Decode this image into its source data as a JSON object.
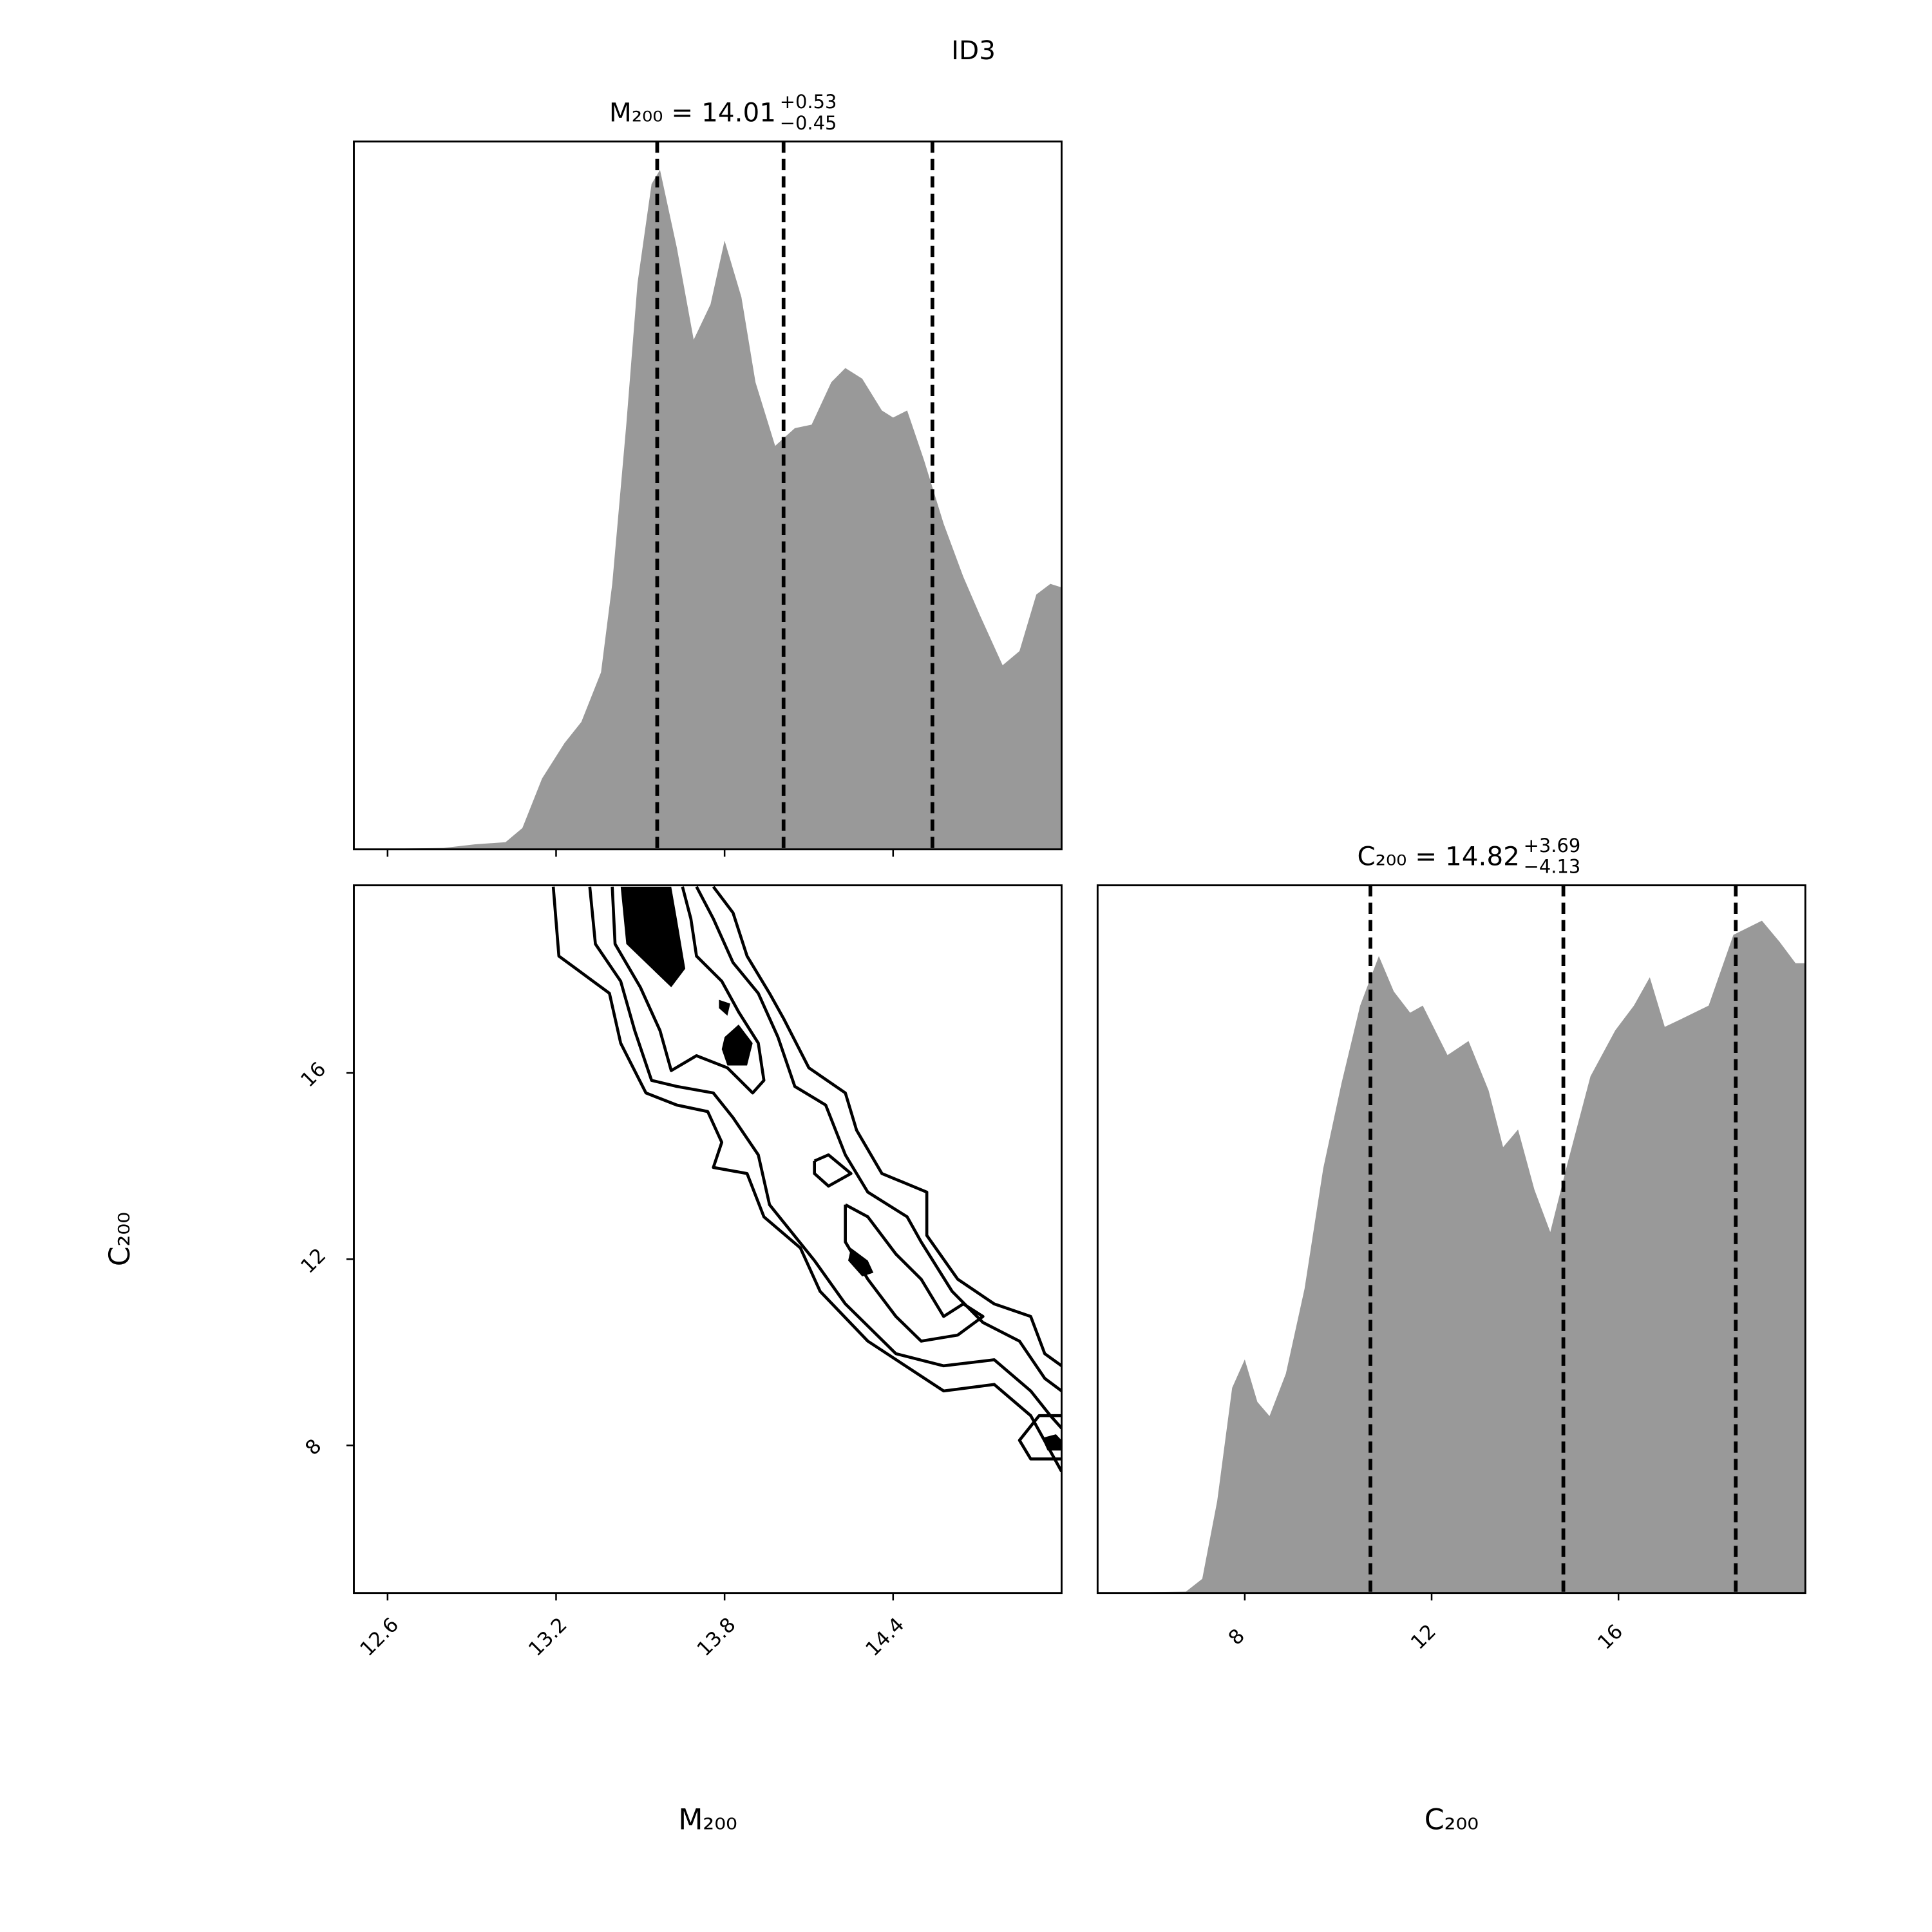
{
  "title": "ID3",
  "chart_data": [
    {
      "type": "density",
      "title": {
        "text": "M₂₀₀ = 14.01",
        "upper": "+0.53",
        "lower": "−0.45"
      },
      "x": [
        12.48,
        12.8,
        12.91,
        13.02,
        13.08,
        13.15,
        13.23,
        13.29,
        13.36,
        13.4,
        13.45,
        13.49,
        13.54,
        13.57,
        13.63,
        13.69,
        13.75,
        13.8,
        13.86,
        13.91,
        13.98,
        14.05,
        14.11,
        14.18,
        14.23,
        14.29,
        14.36,
        14.4,
        14.45,
        14.51,
        14.58,
        14.65,
        14.71,
        14.79,
        14.85,
        14.91,
        14.96,
        15.0
      ],
      "values": [
        0,
        0.002,
        0.007,
        0.01,
        0.03,
        0.1,
        0.15,
        0.18,
        0.25,
        0.375,
        0.6,
        0.8,
        0.94,
        0.96,
        0.85,
        0.72,
        0.77,
        0.86,
        0.78,
        0.66,
        0.57,
        0.595,
        0.6,
        0.66,
        0.68,
        0.665,
        0.62,
        0.61,
        0.62,
        0.55,
        0.46,
        0.385,
        0.33,
        0.26,
        0.28,
        0.36,
        0.375,
        0.37
      ],
      "quantiles": [
        13.56,
        14.01,
        14.54
      ],
      "color": "#999999",
      "xlim": [
        12.48,
        15.0
      ],
      "ylim": [
        0,
        1
      ],
      "xticks": [
        12.6,
        13.2,
        13.8,
        14.4
      ]
    },
    {
      "type": "contour",
      "xlabel": "M₂₀₀",
      "ylabel": "C₂₀₀",
      "color": "#000000",
      "xlim": [
        12.48,
        15.0
      ],
      "ylim": [
        4.83,
        20.03
      ],
      "xticks": [
        12.6,
        13.2,
        13.8,
        14.4
      ],
      "yticks": [
        8,
        12,
        16
      ],
      "contours": [
        {
          "x": [
            13.19,
            13.21,
            13.39,
            13.43,
            13.52,
            13.63,
            13.74,
            13.79,
            13.76,
            13.88,
            13.94,
            14.07,
            14.14,
            14.31,
            14.58,
            14.76,
            14.89,
            15.0,
            null,
            15.0,
            14.94,
            14.89,
            14.76,
            14.63,
            14.52,
            14.52,
            14.36,
            14.27,
            14.23,
            14.1,
            14.01,
            13.96,
            13.88,
            13.83,
            13.76
          ],
          "y": [
            20.0,
            18.51,
            17.71,
            16.64,
            15.57,
            15.31,
            15.17,
            14.51,
            13.97,
            13.84,
            12.91,
            12.24,
            11.31,
            10.24,
            9.17,
            9.31,
            8.64,
            7.44,
            null,
            9.71,
            9.97,
            10.77,
            11.04,
            11.57,
            12.51,
            13.44,
            13.84,
            14.77,
            15.57,
            16.11,
            17.17,
            17.71,
            18.51,
            19.44,
            20.0
          ]
        },
        {
          "x": [
            13.32,
            13.34,
            13.43,
            13.48,
            13.54,
            13.63,
            13.76,
            13.83,
            13.92,
            13.96,
            14.12,
            14.23,
            14.41,
            14.58,
            14.76,
            14.89,
            14.96,
            15.0,
            null,
            15.0,
            14.94,
            14.85,
            14.72,
            14.61,
            14.5,
            14.45,
            14.31,
            14.23,
            14.16,
            14.05,
            13.99,
            13.92,
            13.83,
            13.76,
            13.7
          ],
          "y": [
            20.0,
            18.77,
            17.97,
            16.91,
            15.84,
            15.71,
            15.57,
            15.04,
            14.24,
            13.17,
            11.97,
            11.04,
            9.97,
            9.71,
            9.84,
            9.17,
            8.64,
            8.37,
            null,
            9.17,
            9.44,
            10.24,
            10.64,
            11.31,
            12.37,
            12.91,
            13.44,
            14.24,
            15.31,
            15.71,
            16.77,
            17.71,
            18.37,
            19.31,
            20.0
          ]
        },
        {
          "x": [
            13.4,
            13.41,
            13.5,
            13.57,
            13.61,
            13.7,
            13.81,
            13.9,
            13.94,
            13.92,
            13.85,
            13.79,
            13.7,
            13.68,
            13.65
          ],
          "y": [
            20.0,
            18.77,
            17.84,
            16.91,
            16.05,
            16.37,
            16.11,
            15.57,
            15.84,
            16.64,
            17.31,
            17.97,
            18.51,
            19.31,
            20.0
          ]
        },
        {
          "x": [
            14.23,
            14.31,
            14.41,
            14.5,
            14.58,
            14.65,
            14.72,
            14.63,
            14.5,
            14.41,
            14.31,
            14.23,
            14.23
          ],
          "y": [
            13.17,
            12.91,
            12.11,
            11.57,
            10.77,
            11.04,
            10.77,
            10.37,
            10.24,
            10.77,
            11.57,
            12.37,
            13.17
          ]
        },
        {
          "x": [
            14.12,
            14.17,
            14.25,
            14.17,
            14.12,
            14.12
          ],
          "y": [
            14.11,
            14.24,
            13.84,
            13.57,
            13.84,
            14.11
          ]
        },
        {
          "x": [
            15.0,
            14.92,
            14.85,
            14.89,
            15.0
          ],
          "y": [
            8.64,
            8.64,
            8.11,
            7.71,
            7.71
          ]
        }
      ],
      "fills": [
        {
          "x": [
            13.43,
            13.45,
            13.61,
            13.66,
            13.63,
            13.61
          ],
          "y": [
            20.0,
            18.77,
            17.84,
            18.24,
            19.31,
            20.0
          ]
        },
        {
          "x": [
            13.8,
            13.85,
            13.9,
            13.88,
            13.81,
            13.79
          ],
          "y": [
            16.77,
            17.04,
            16.64,
            16.16,
            16.16,
            16.51
          ]
        },
        {
          "x": [
            13.78,
            13.82,
            13.81,
            13.78
          ],
          "y": [
            17.57,
            17.49,
            17.23,
            17.39
          ]
        },
        {
          "x": [
            14.25,
            14.31,
            14.33,
            14.29,
            14.24
          ],
          "y": [
            12.24,
            11.97,
            11.71,
            11.63,
            11.97
          ]
        },
        {
          "x": [
            14.93,
            14.98,
            15.0,
            15.0,
            14.95
          ],
          "y": [
            8.16,
            8.24,
            8.11,
            7.89,
            7.89
          ]
        }
      ]
    },
    {
      "type": "density",
      "title": {
        "text": "C₂₀₀ = 14.82",
        "upper": "+3.69",
        "lower": "−4.13"
      },
      "xlabel": "C₂₀₀",
      "x": [
        4.85,
        6.74,
        7.09,
        7.41,
        7.73,
        8.0,
        8.27,
        8.53,
        8.88,
        9.28,
        9.68,
        10.07,
        10.47,
        10.87,
        11.19,
        11.54,
        11.81,
        12.34,
        12.79,
        13.22,
        13.53,
        13.85,
        14.2,
        14.54,
        14.92,
        15.4,
        15.93,
        16.33,
        16.67,
        16.99,
        17.31,
        17.93,
        18.46,
        19.07,
        19.45,
        19.79,
        20.0
      ],
      "values": [
        0,
        0.002,
        0.02,
        0.13,
        0.29,
        0.33,
        0.27,
        0.25,
        0.31,
        0.43,
        0.6,
        0.72,
        0.83,
        0.9,
        0.85,
        0.82,
        0.83,
        0.76,
        0.78,
        0.71,
        0.63,
        0.655,
        0.57,
        0.51,
        0.61,
        0.73,
        0.795,
        0.83,
        0.87,
        0.8,
        0.81,
        0.83,
        0.93,
        0.95,
        0.92,
        0.89,
        0.89
      ],
      "quantiles": [
        10.69,
        14.82,
        18.51
      ],
      "color": "#999999",
      "xlim": [
        4.85,
        20.0
      ],
      "ylim": [
        0,
        1
      ],
      "xticks": [
        8,
        12,
        16
      ]
    }
  ]
}
